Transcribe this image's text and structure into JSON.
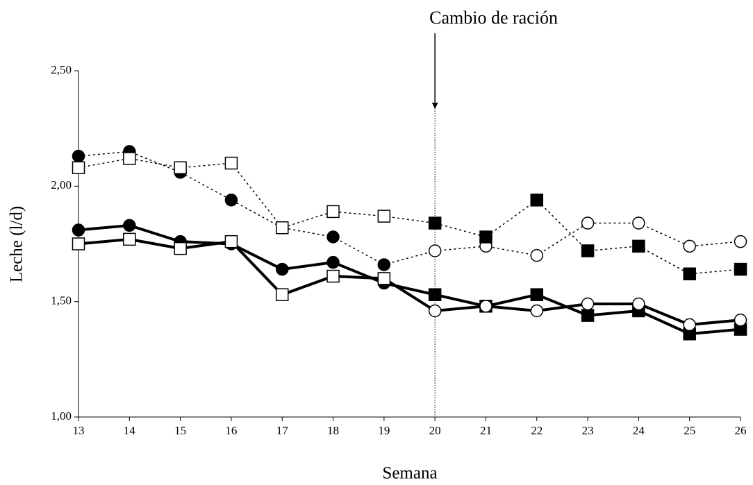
{
  "chart_data": {
    "type": "line",
    "x_label": "Semana",
    "y_label": "Leche (l/d)",
    "annotation": {
      "text": "Cambio de ración",
      "x": 20
    },
    "x": [
      13,
      14,
      15,
      16,
      17,
      18,
      19,
      20,
      21,
      22,
      23,
      24,
      25,
      26
    ],
    "xlim": [
      13,
      26
    ],
    "xticks": [
      13,
      14,
      15,
      16,
      17,
      18,
      19,
      20,
      21,
      22,
      23,
      24,
      25,
      26
    ],
    "ylim": [
      1,
      2.5
    ],
    "yticks": [
      {
        "value": 1,
        "label": "1,00"
      },
      {
        "value": 1.5,
        "label": "1,50"
      },
      {
        "value": 2,
        "label": "2,00"
      },
      {
        "value": 2.5,
        "label": "2,50"
      }
    ],
    "series": [
      {
        "color": "#000000",
        "dash": "dotted",
        "marker": [
          "filled-circle",
          "open-circle"
        ],
        "values": [
          2.13,
          2.15,
          2.06,
          1.94,
          1.82,
          1.78,
          1.66,
          1.72,
          1.74,
          1.7,
          1.84,
          1.84,
          1.74,
          1.76
        ]
      },
      {
        "color": "#000000",
        "dash": "dotted",
        "marker": [
          "open-square",
          "filled-square"
        ],
        "values": [
          2.08,
          2.12,
          2.08,
          2.1,
          1.82,
          1.89,
          1.87,
          1.84,
          1.78,
          1.94,
          1.72,
          1.74,
          1.62,
          1.64
        ]
      },
      {
        "color": "#000000",
        "dash": "solid",
        "marker": [
          "filled-circle",
          "filled-square"
        ],
        "values": [
          1.81,
          1.83,
          1.76,
          1.75,
          1.64,
          1.67,
          1.58,
          1.53,
          1.48,
          1.53,
          1.44,
          1.46,
          1.36,
          1.38
        ]
      },
      {
        "color": "#000000",
        "dash": "solid",
        "marker": [
          "open-square",
          "open-circle"
        ],
        "values": [
          1.75,
          1.77,
          1.73,
          1.76,
          1.53,
          1.61,
          1.6,
          1.46,
          1.48,
          1.46,
          1.49,
          1.49,
          1.4,
          1.42
        ]
      }
    ]
  }
}
